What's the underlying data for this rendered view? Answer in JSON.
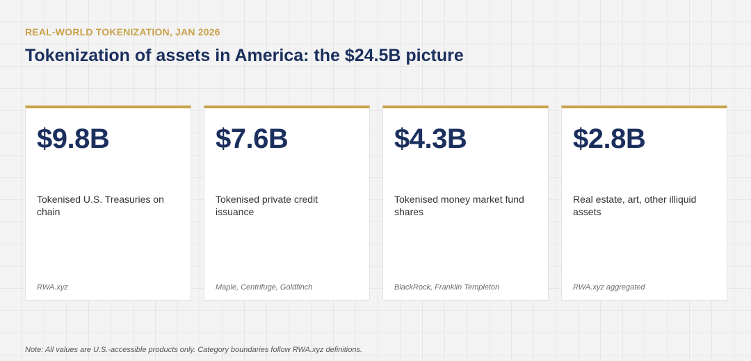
{
  "header": {
    "eyebrow": "REAL-WORLD TOKENIZATION, JAN 2026",
    "title": "Tokenization of assets in America: the $24.5B picture"
  },
  "cards": [
    {
      "value": "$9.8B",
      "description": "Tokenised U.S. Treasuries on chain",
      "source": "RWA.xyz"
    },
    {
      "value": "$7.6B",
      "description": "Tokenised private credit issuance",
      "source": "Maple, Centrifuge, Goldfinch"
    },
    {
      "value": "$4.3B",
      "description": "Tokenised money market fund shares",
      "source": "BlackRock, Franklin Templeton"
    },
    {
      "value": "$2.8B",
      "description": "Real estate, art, other illiquid assets",
      "source": "RWA.xyz aggregated"
    }
  ],
  "footer": {
    "note": "Note: All values are U.S.-accessible products only. Category boundaries follow RWA.xyz definitions."
  },
  "colors": {
    "accent": "#c9a249",
    "navy": "#1b2f5e",
    "background": "#f3f3f3"
  }
}
